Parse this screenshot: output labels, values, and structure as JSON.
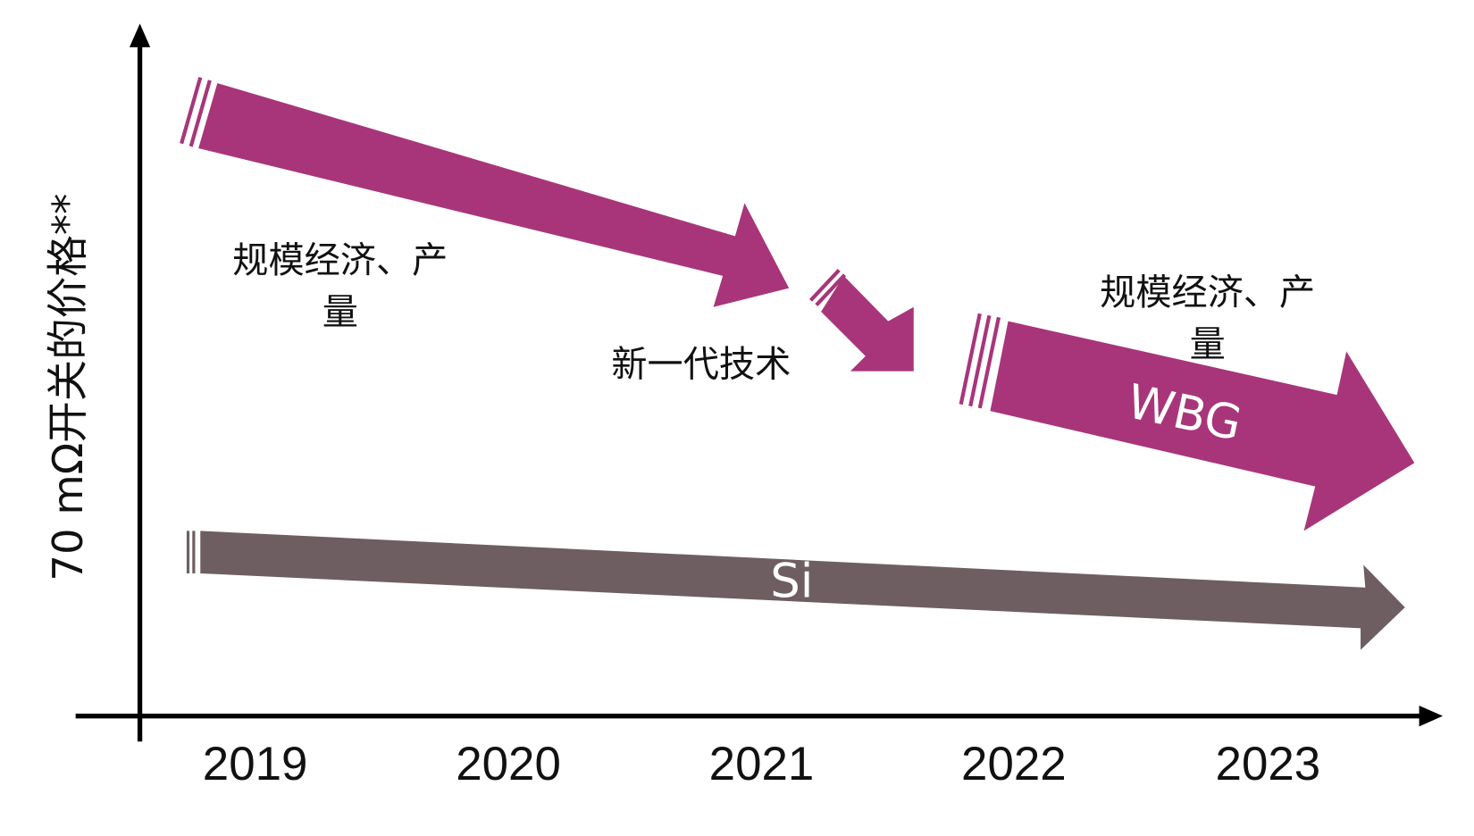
{
  "y_axis_label": "70 mΩ开关的价格**",
  "years": [
    "2019",
    "2020",
    "2021",
    "2022",
    "2023"
  ],
  "annotations": {
    "scale_left": [
      "规模经济、产",
      "量"
    ],
    "new_tech": "新一代技术",
    "scale_right": [
      "规模经济、产",
      "量"
    ]
  },
  "arrows": {
    "wbg": "WBG",
    "si": "Si"
  }
}
